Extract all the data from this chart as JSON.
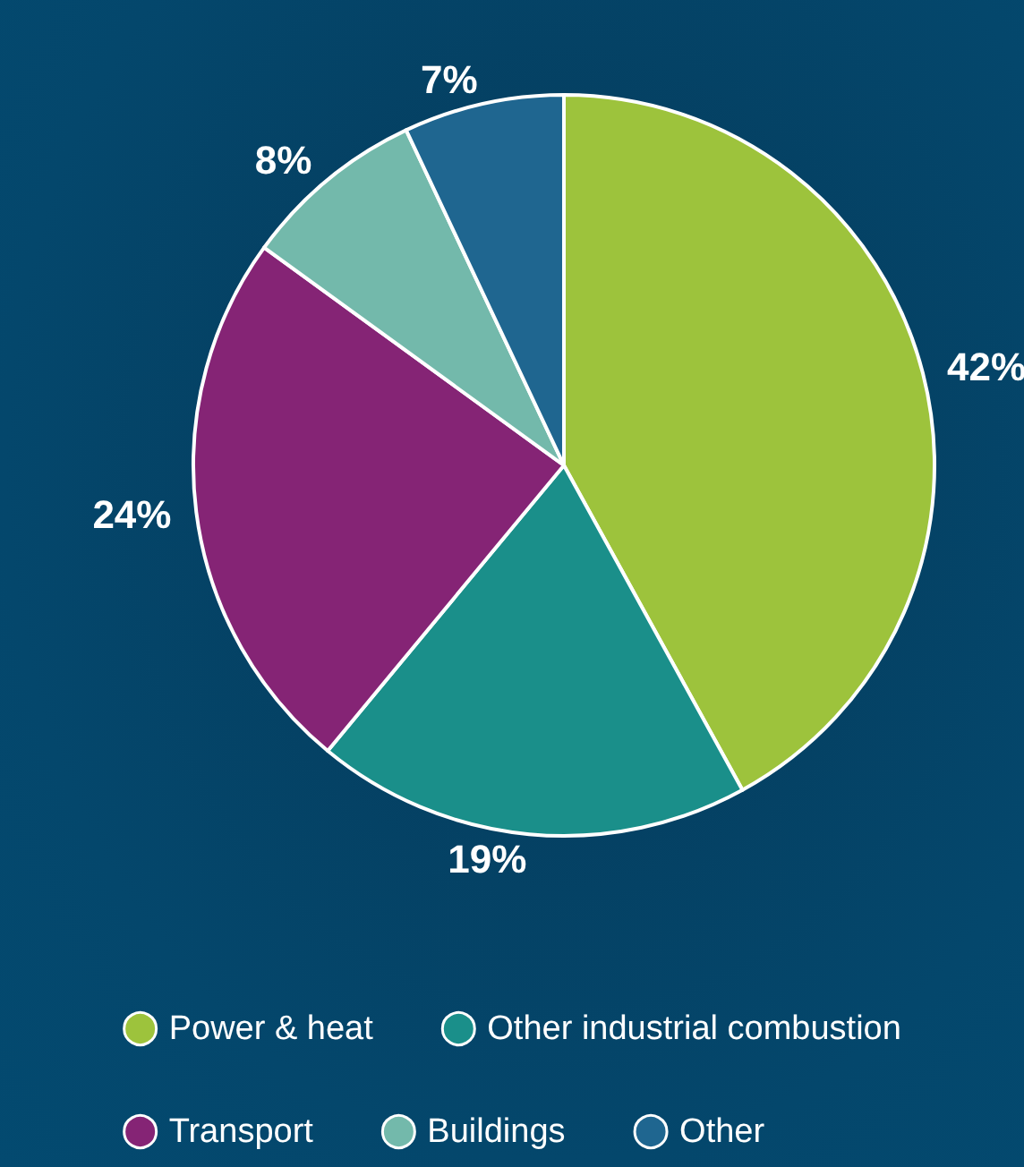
{
  "chart_data": {
    "type": "pie",
    "categories": [
      "Power & heat",
      "Other industrial combustion",
      "Transport",
      "Buildings",
      "Other"
    ],
    "values": [
      42,
      19,
      24,
      8,
      7
    ],
    "colors": [
      "#9dc33c",
      "#1a8f8a",
      "#852475",
      "#73b9ab",
      "#1f6690"
    ],
    "value_labels": [
      "42%",
      "19%",
      "24%",
      "8%",
      "7%"
    ],
    "legend": "bottom"
  }
}
